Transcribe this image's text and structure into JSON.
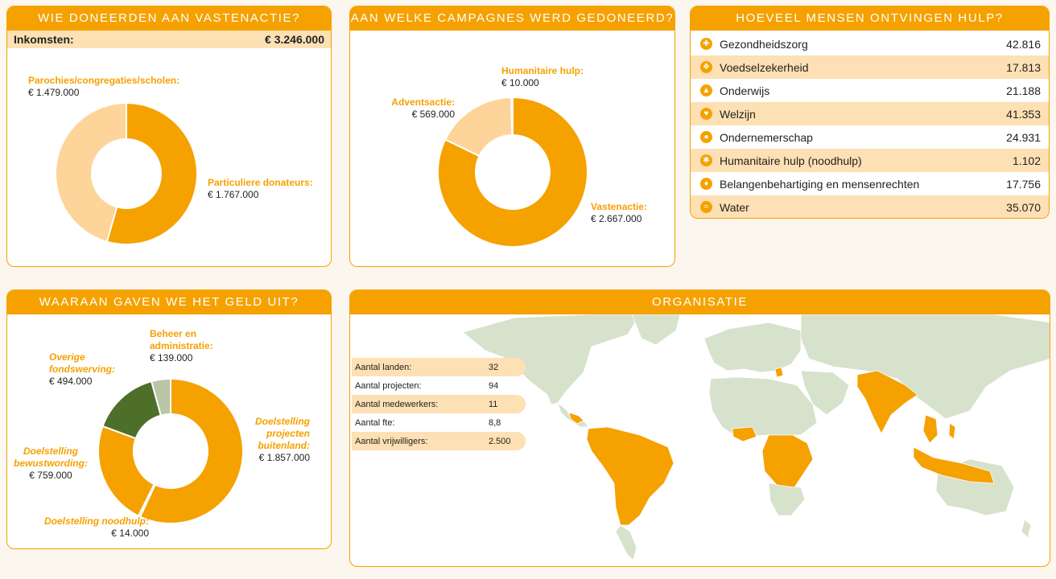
{
  "donors": {
    "title": "WIE DONEERDEN AAN VASTENACTIE?",
    "income_label": "Inkomsten:",
    "income_value": "€ 3.246.000",
    "chart_data": {
      "type": "pie",
      "donut": true,
      "categories": [
        "Particuliere donateurs",
        "Parochies/congregaties/scholen"
      ],
      "labels": [
        "Particuliere donateurs:",
        "Parochies/congregaties/scholen:"
      ],
      "values": [
        1767000,
        1479000
      ],
      "value_labels": [
        "€ 1.767.000",
        "€ 1.479.000"
      ],
      "colors": [
        "#f5a100",
        "#fdd499"
      ]
    }
  },
  "campaigns": {
    "title": "AAN WELKE CAMPAGNES WERD GEDONEERD?",
    "chart_data": {
      "type": "pie",
      "donut": true,
      "categories": [
        "Vastenactie",
        "Adventsactie",
        "Humanitaire hulp"
      ],
      "labels": [
        "Vastenactie:",
        "Adventsactie:",
        "Humanitaire hulp:"
      ],
      "values": [
        2667000,
        569000,
        10000
      ],
      "value_labels": [
        "€ 2.667.000",
        "€ 569.000",
        "€ 10.000"
      ],
      "colors": [
        "#f5a100",
        "#fdd499",
        "#b8c6a6"
      ]
    }
  },
  "help": {
    "title": "HOEVEEL MENSEN ONTVINGEN HULP?",
    "rows": [
      {
        "icon": "health-cross-icon",
        "glyph": "✚",
        "label": "Gezondheidszorg",
        "value": "42.816"
      },
      {
        "icon": "food-icon",
        "glyph": "❖",
        "label": "Voedselzekerheid",
        "value": "17.813"
      },
      {
        "icon": "education-cap-icon",
        "glyph": "▲",
        "label": "Onderwijs",
        "value": "21.188"
      },
      {
        "icon": "heart-icon",
        "glyph": "♥",
        "label": "Welzijn",
        "value": "41.353"
      },
      {
        "icon": "entrepreneur-icon",
        "glyph": "●",
        "label": "Ondernemerschap",
        "value": "24.931"
      },
      {
        "icon": "humanitarian-icon",
        "glyph": "✱",
        "label": "Humanitaire hulp (noodhulp)",
        "value": "1.102"
      },
      {
        "icon": "advocacy-icon",
        "glyph": "♦",
        "label": "Belangenbehartiging en mensenrechten",
        "value": "17.756"
      },
      {
        "icon": "water-drop-icon",
        "glyph": "≈",
        "label": "Water",
        "value": "35.070"
      }
    ]
  },
  "spending": {
    "title": "WAARAAN GAVEN WE HET GELD UIT?",
    "chart_data": {
      "type": "pie",
      "donut": true,
      "categories": [
        "Doelstelling projecten buitenland",
        "Doelstelling noodhulp",
        "Doelstelling bewustwording",
        "Overige fondswerving",
        "Beheer en administratie"
      ],
      "labels": [
        "Doelstelling projecten buitenland:",
        "Doelstelling noodhulp:",
        "Doelstelling bewustwording:",
        "Overige fondswerving:",
        "Beheer en administratie:"
      ],
      "values": [
        1857000,
        14000,
        759000,
        494000,
        139000
      ],
      "value_labels": [
        "€ 1.857.000",
        "€ 14.000",
        "€ 759.000",
        "€ 494.000",
        "€ 139.000"
      ],
      "colors": [
        "#f5a100",
        "#f5a100",
        "#f5a100",
        "#4e6f2a",
        "#b8c6a6"
      ]
    }
  },
  "organisation": {
    "title": "ORGANISATIE",
    "stats": [
      {
        "label": "Aantal landen:",
        "value": "32"
      },
      {
        "label": "Aantal projecten:",
        "value": "94"
      },
      {
        "label": "Aantal medewerkers:",
        "value": "11"
      },
      {
        "label": "Aantal fte:",
        "value": "8,8"
      },
      {
        "label": "Aantal vrijwilligers:",
        "value": "2.500"
      }
    ],
    "map_colors": {
      "land": "#d7e2cc",
      "highlight": "#f5a100",
      "sea": "#ffffff"
    }
  }
}
